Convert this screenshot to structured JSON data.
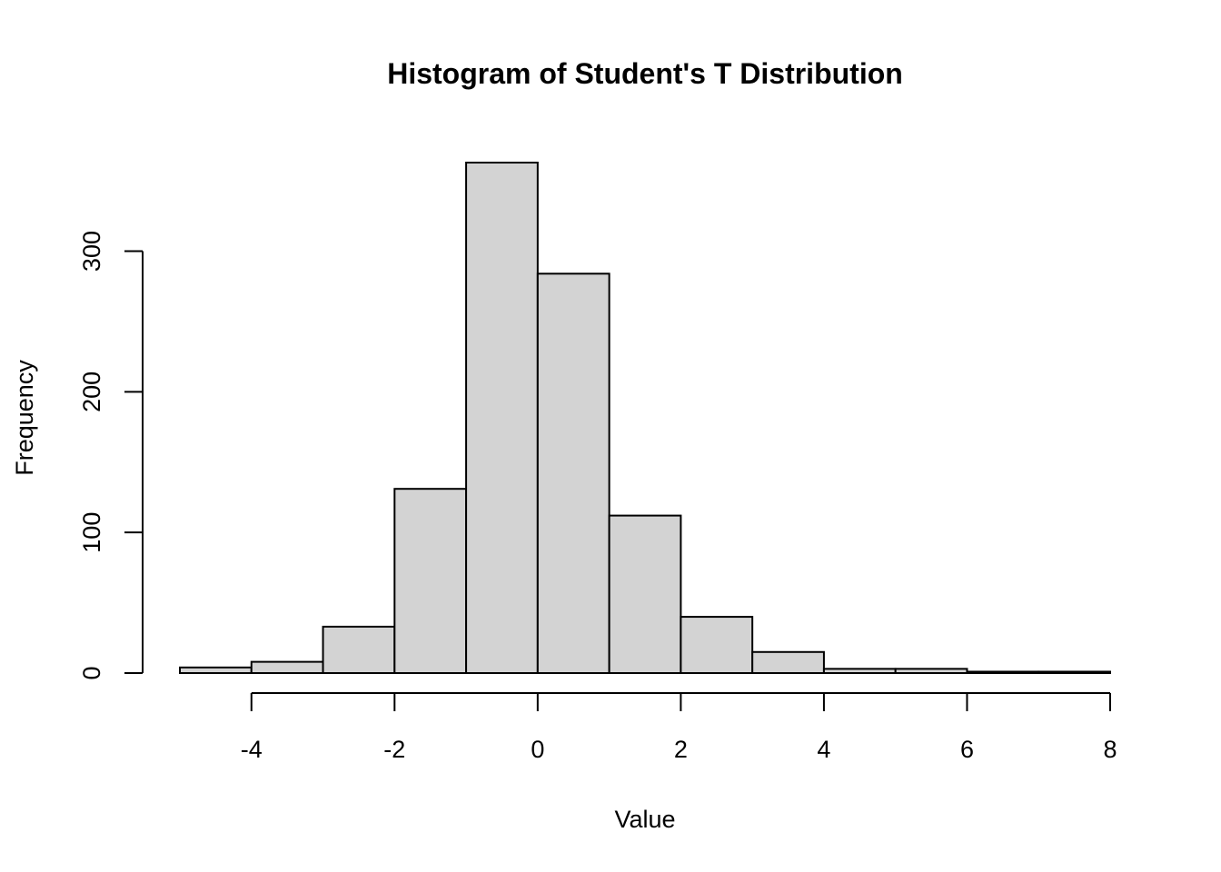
{
  "chart_data": {
    "type": "bar",
    "title": "Histogram of Student's T Distribution",
    "xlabel": "Value",
    "ylabel": "Frequency",
    "bin_edges": [
      -5,
      -4,
      -3,
      -2,
      -1,
      0,
      1,
      2,
      3,
      4,
      5,
      6,
      7,
      8
    ],
    "values": [
      4,
      8,
      33,
      131,
      363,
      284,
      112,
      40,
      15,
      3,
      3,
      1,
      1
    ],
    "xticks": [
      -4,
      -2,
      0,
      2,
      4,
      6,
      8
    ],
    "xtick_labels": [
      "-4",
      "-2",
      "0",
      "2",
      "4",
      "6",
      "8"
    ],
    "yticks": [
      0,
      100,
      200,
      300
    ],
    "ytick_labels": [
      "0",
      "100",
      "200",
      "300"
    ],
    "xlim": [
      -5,
      8
    ],
    "ylim": [
      0,
      363
    ],
    "grid": false,
    "bar_fill": "#d3d3d3",
    "bar_stroke": "#000000"
  }
}
